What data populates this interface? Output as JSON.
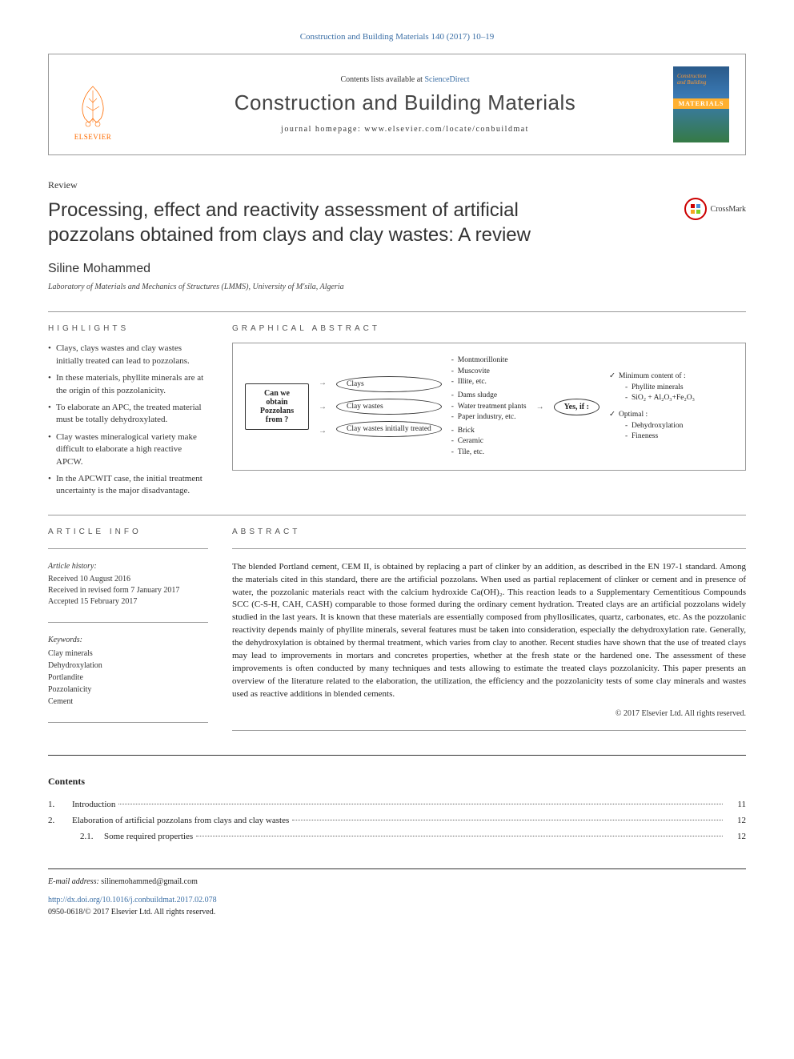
{
  "citation": "Construction and Building Materials 140 (2017) 10–19",
  "header": {
    "contents_prefix": "Contents lists available at ",
    "science_direct": "ScienceDirect",
    "journal_title": "Construction and Building Materials",
    "homepage_prefix": "journal homepage: ",
    "homepage_url": "www.elsevier.com/locate/conbuildmat",
    "elsevier": "ELSEVIER",
    "cover": {
      "line1": "Construction",
      "line2": "and Building",
      "materials": "MATERIALS"
    }
  },
  "article": {
    "type": "Review",
    "title": "Processing, effect and reactivity assessment of artificial pozzolans obtained from clays and clay wastes: A review",
    "crossmark": "CrossMark",
    "author": "Siline Mohammed",
    "affiliation": "Laboratory of Materials and Mechanics of Structures (LMMS), University of M'sila, Algeria"
  },
  "highlights": {
    "label": "HIGHLIGHTS",
    "items": [
      "Clays, clays wastes and clay wastes initially treated can lead to pozzolans.",
      "In these materials, phyllite minerals are at the origin of this pozzolanicity.",
      "To elaborate an APC, the treated material must be totally dehydroxylated.",
      "Clay wastes mineralogical variety make difficult to elaborate a high reactive APCW.",
      "In the APCWIT case, the initial treatment uncertainty is the major disadvantage."
    ]
  },
  "graphical": {
    "label": "GRAPHICAL ABSTRACT",
    "start_box": "Can we obtain Pozzolans from ?",
    "branches": [
      {
        "node": "Clays",
        "items": [
          "Montmorillonite",
          "Muscovite",
          "Illite, etc."
        ]
      },
      {
        "node": "Clay wastes",
        "items": [
          "Dams sludge",
          "Water treatment plants",
          "Paper industry, etc."
        ]
      },
      {
        "node": "Clay wastes initially treated",
        "items": [
          "Brick",
          "Ceramic",
          "Tile, etc."
        ]
      }
    ],
    "yes_node": "Yes, if :",
    "conditions": {
      "min_label": "Minimum content of :",
      "min_items": [
        "Phyllite minerals",
        "SiO₂ + Al₂O₃+Fe₂O₃"
      ],
      "opt_label": "Optimal :",
      "opt_items": [
        "Dehydroxylation",
        "Fineness"
      ]
    }
  },
  "article_info": {
    "label": "ARTICLE INFO",
    "history_heading": "Article history:",
    "received": "Received 10 August 2016",
    "revised": "Received in revised form 7 January 2017",
    "accepted": "Accepted 15 February 2017",
    "keywords_heading": "Keywords:",
    "keywords": [
      "Clay minerals",
      "Dehydroxylation",
      "Portlandite",
      "Pozzolanicity",
      "Cement"
    ]
  },
  "abstract": {
    "label": "ABSTRACT",
    "text": "The blended Portland cement, CEM II, is obtained by replacing a part of clinker by an addition, as described in the EN 197-1 standard. Among the materials cited in this standard, there are the artificial pozzolans. When used as partial replacement of clinker or cement and in presence of water, the pozzolanic materials react with the calcium hydroxide Ca(OH)₂. This reaction leads to a Supplementary Cementitious Compounds SCC (C-S-H, CAH, CASH) comparable to those formed during the ordinary cement hydration. Treated clays are an artificial pozzolans widely studied in the last years. It is known that these materials are essentially composed from phyllosilicates, quartz, carbonates, etc. As the pozzolanic reactivity depends mainly of phyllite minerals, several features must be taken into consideration, especially the dehydroxylation rate. Generally, the dehydroxylation is obtained by thermal treatment, which varies from clay to another. Recent studies have shown that the use of treated clays may lead to improvements in mortars and concretes properties, whether at the fresh state or the hardened one. The assessment of these improvements is often conducted by many techniques and tests allowing to estimate the treated clays pozzolanicity. This paper presents an overview of the literature related to the elaboration, the utilization, the efficiency and the pozzolanicity tests of some clay minerals and wastes used as reactive additions in blended cements.",
    "copyright": "© 2017 Elsevier Ltd. All rights reserved."
  },
  "contents": {
    "heading": "Contents",
    "items": [
      {
        "num": "1.",
        "title": "Introduction",
        "page": "11",
        "indent": 0
      },
      {
        "num": "2.",
        "title": "Elaboration of artificial pozzolans from clays and clay wastes",
        "page": "12",
        "indent": 0
      },
      {
        "num": "2.1.",
        "title": "Some required properties",
        "page": "12",
        "indent": 1
      }
    ]
  },
  "footer": {
    "email_label": "E-mail address: ",
    "email": "silinemohammed@gmail.com",
    "doi": "http://dx.doi.org/10.1016/j.conbuildmat.2017.02.078",
    "issn_copyright": "0950-0618/© 2017 Elsevier Ltd. All rights reserved."
  },
  "colors": {
    "link": "#3a6ea5",
    "elsevier_orange": "#ff6c00",
    "border": "#999999"
  }
}
